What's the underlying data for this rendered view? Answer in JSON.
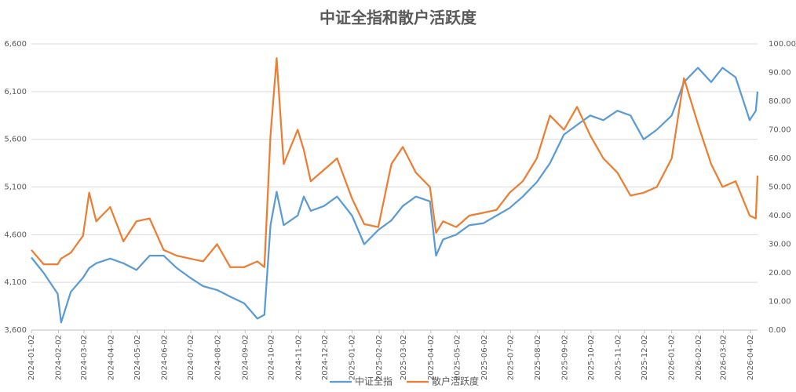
{
  "chart_data": {
    "type": "line",
    "title": "中证全指和散户活跃度",
    "x": [
      "2024-01-02",
      "2024-01-16",
      "2024-02-01",
      "2024-02-05",
      "2024-02-16",
      "2024-03-01",
      "2024-03-08",
      "2024-03-16",
      "2024-04-01",
      "2024-04-16",
      "2024-05-01",
      "2024-05-16",
      "2024-06-01",
      "2024-06-16",
      "2024-07-01",
      "2024-07-16",
      "2024-08-01",
      "2024-08-16",
      "2024-09-01",
      "2024-09-16",
      "2024-09-24",
      "2024-10-01",
      "2024-10-08",
      "2024-10-16",
      "2024-11-01",
      "2024-11-08",
      "2024-11-16",
      "2024-12-01",
      "2024-12-16",
      "2025-01-02",
      "2025-01-16",
      "2025-02-01",
      "2025-02-16",
      "2025-03-01",
      "2025-03-16",
      "2025-04-01",
      "2025-04-08",
      "2025-04-16",
      "2025-05-01",
      "2025-05-16",
      "2025-06-01",
      "2025-06-16",
      "2025-07-01",
      "2025-07-16",
      "2025-08-01",
      "2025-08-16",
      "2025-09-01",
      "2025-09-16",
      "2025-10-01",
      "2025-10-16",
      "2025-11-01",
      "2025-11-16",
      "2025-12-01",
      "2025-12-16",
      "2026-01-02",
      "2026-01-16",
      "2026-02-01",
      "2026-02-16",
      "2026-03-01",
      "2026-03-16",
      "2026-04-01",
      "2026-04-08",
      "2026-04-10"
    ],
    "series": [
      {
        "name": "中证全指",
        "color": "#5b9bd5",
        "values": [
          4360,
          4200,
          3980,
          3680,
          4000,
          4150,
          4250,
          4300,
          4350,
          4300,
          4230,
          4380,
          4380,
          4250,
          4150,
          4060,
          4020,
          3950,
          3880,
          3720,
          3760,
          4700,
          5050,
          4700,
          4800,
          5000,
          4850,
          4900,
          5000,
          4800,
          4500,
          4650,
          4750,
          4900,
          5000,
          4950,
          4380,
          4550,
          4600,
          4700,
          4720,
          4800,
          4880,
          5000,
          5150,
          5350,
          5650,
          5750,
          5850,
          5800,
          5900,
          5850,
          5600,
          5700,
          5850,
          6200,
          6350,
          6200,
          6350,
          6250,
          5800,
          5900,
          6100
        ]
      },
      {
        "name": "散户活跃度",
        "color": "#ed7d31",
        "axis": "y2",
        "values": [
          28,
          23,
          23,
          25,
          27,
          33,
          48,
          38,
          43,
          31,
          38,
          39,
          28,
          26,
          25,
          24,
          30,
          22,
          22,
          24,
          22,
          68,
          95,
          58,
          70,
          63,
          52,
          56,
          60,
          46,
          37,
          36,
          58,
          64,
          55,
          50,
          34,
          38,
          36,
          40,
          41,
          42,
          48,
          52,
          60,
          75,
          70,
          78,
          68,
          60,
          55,
          47,
          48,
          50,
          60,
          88,
          72,
          58,
          50,
          52,
          40,
          39,
          54
        ]
      }
    ],
    "xlim": [
      "2024-01-02",
      "2026-04-10"
    ],
    "xticks": [
      "2024-01-02",
      "2024-02-02",
      "2024-03-02",
      "2024-04-02",
      "2024-05-02",
      "2024-06-02",
      "2024-07-02",
      "2024-08-02",
      "2024-09-02",
      "2024-10-02",
      "2024-11-02",
      "2024-12-02",
      "2025-01-02",
      "2025-02-02",
      "2025-03-02",
      "2025-04-02",
      "2025-05-02",
      "2025-06-02",
      "2025-07-02",
      "2025-08-02",
      "2025-09-02",
      "2025-10-02",
      "2025-11-02",
      "2025-12-02",
      "2026-01-02",
      "2026-02-02",
      "2026-03-02",
      "2026-04-02"
    ],
    "ylim": [
      3600,
      6600
    ],
    "yticks": [
      {
        "value": 3600,
        "label": "3,600"
      },
      {
        "value": 4100,
        "label": "4,100"
      },
      {
        "value": 4600,
        "label": "4,600"
      },
      {
        "value": 5100,
        "label": "5,100"
      },
      {
        "value": 5600,
        "label": "5,600"
      },
      {
        "value": 6100,
        "label": "6,100"
      },
      {
        "value": 6600,
        "label": "6,600"
      }
    ],
    "y2lim": [
      0,
      100
    ],
    "y2ticks": [
      {
        "value": 0,
        "label": "0.00"
      },
      {
        "value": 10,
        "label": "10.00"
      },
      {
        "value": 20,
        "label": "20.00"
      },
      {
        "value": 30,
        "label": "30.00"
      },
      {
        "value": 40,
        "label": "40.00"
      },
      {
        "value": 50,
        "label": "50.00"
      },
      {
        "value": 60,
        "label": "60.00"
      },
      {
        "value": 70,
        "label": "70.00"
      },
      {
        "value": 80,
        "label": "80.00"
      },
      {
        "value": 90,
        "label": "90.00"
      },
      {
        "value": 100,
        "label": "100.00"
      }
    ],
    "grid": true,
    "legend": "bottom"
  }
}
